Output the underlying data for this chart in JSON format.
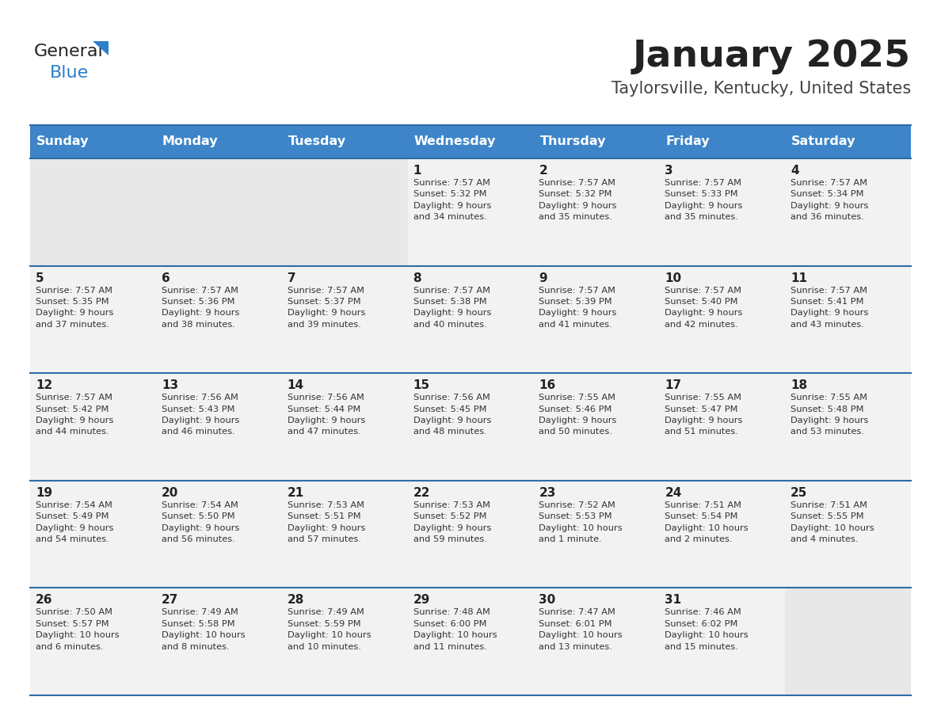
{
  "title": "January 2025",
  "subtitle": "Taylorsville, Kentucky, United States",
  "header_bg": "#3d85c8",
  "header_text_color": "#ffffff",
  "days_of_week": [
    "Sunday",
    "Monday",
    "Tuesday",
    "Wednesday",
    "Thursday",
    "Friday",
    "Saturday"
  ],
  "weeks": [
    [
      {
        "day": "",
        "info": ""
      },
      {
        "day": "",
        "info": ""
      },
      {
        "day": "",
        "info": ""
      },
      {
        "day": "1",
        "info": "Sunrise: 7:57 AM\nSunset: 5:32 PM\nDaylight: 9 hours\nand 34 minutes."
      },
      {
        "day": "2",
        "info": "Sunrise: 7:57 AM\nSunset: 5:32 PM\nDaylight: 9 hours\nand 35 minutes."
      },
      {
        "day": "3",
        "info": "Sunrise: 7:57 AM\nSunset: 5:33 PM\nDaylight: 9 hours\nand 35 minutes."
      },
      {
        "day": "4",
        "info": "Sunrise: 7:57 AM\nSunset: 5:34 PM\nDaylight: 9 hours\nand 36 minutes."
      }
    ],
    [
      {
        "day": "5",
        "info": "Sunrise: 7:57 AM\nSunset: 5:35 PM\nDaylight: 9 hours\nand 37 minutes."
      },
      {
        "day": "6",
        "info": "Sunrise: 7:57 AM\nSunset: 5:36 PM\nDaylight: 9 hours\nand 38 minutes."
      },
      {
        "day": "7",
        "info": "Sunrise: 7:57 AM\nSunset: 5:37 PM\nDaylight: 9 hours\nand 39 minutes."
      },
      {
        "day": "8",
        "info": "Sunrise: 7:57 AM\nSunset: 5:38 PM\nDaylight: 9 hours\nand 40 minutes."
      },
      {
        "day": "9",
        "info": "Sunrise: 7:57 AM\nSunset: 5:39 PM\nDaylight: 9 hours\nand 41 minutes."
      },
      {
        "day": "10",
        "info": "Sunrise: 7:57 AM\nSunset: 5:40 PM\nDaylight: 9 hours\nand 42 minutes."
      },
      {
        "day": "11",
        "info": "Sunrise: 7:57 AM\nSunset: 5:41 PM\nDaylight: 9 hours\nand 43 minutes."
      }
    ],
    [
      {
        "day": "12",
        "info": "Sunrise: 7:57 AM\nSunset: 5:42 PM\nDaylight: 9 hours\nand 44 minutes."
      },
      {
        "day": "13",
        "info": "Sunrise: 7:56 AM\nSunset: 5:43 PM\nDaylight: 9 hours\nand 46 minutes."
      },
      {
        "day": "14",
        "info": "Sunrise: 7:56 AM\nSunset: 5:44 PM\nDaylight: 9 hours\nand 47 minutes."
      },
      {
        "day": "15",
        "info": "Sunrise: 7:56 AM\nSunset: 5:45 PM\nDaylight: 9 hours\nand 48 minutes."
      },
      {
        "day": "16",
        "info": "Sunrise: 7:55 AM\nSunset: 5:46 PM\nDaylight: 9 hours\nand 50 minutes."
      },
      {
        "day": "17",
        "info": "Sunrise: 7:55 AM\nSunset: 5:47 PM\nDaylight: 9 hours\nand 51 minutes."
      },
      {
        "day": "18",
        "info": "Sunrise: 7:55 AM\nSunset: 5:48 PM\nDaylight: 9 hours\nand 53 minutes."
      }
    ],
    [
      {
        "day": "19",
        "info": "Sunrise: 7:54 AM\nSunset: 5:49 PM\nDaylight: 9 hours\nand 54 minutes."
      },
      {
        "day": "20",
        "info": "Sunrise: 7:54 AM\nSunset: 5:50 PM\nDaylight: 9 hours\nand 56 minutes."
      },
      {
        "day": "21",
        "info": "Sunrise: 7:53 AM\nSunset: 5:51 PM\nDaylight: 9 hours\nand 57 minutes."
      },
      {
        "day": "22",
        "info": "Sunrise: 7:53 AM\nSunset: 5:52 PM\nDaylight: 9 hours\nand 59 minutes."
      },
      {
        "day": "23",
        "info": "Sunrise: 7:52 AM\nSunset: 5:53 PM\nDaylight: 10 hours\nand 1 minute."
      },
      {
        "day": "24",
        "info": "Sunrise: 7:51 AM\nSunset: 5:54 PM\nDaylight: 10 hours\nand 2 minutes."
      },
      {
        "day": "25",
        "info": "Sunrise: 7:51 AM\nSunset: 5:55 PM\nDaylight: 10 hours\nand 4 minutes."
      }
    ],
    [
      {
        "day": "26",
        "info": "Sunrise: 7:50 AM\nSunset: 5:57 PM\nDaylight: 10 hours\nand 6 minutes."
      },
      {
        "day": "27",
        "info": "Sunrise: 7:49 AM\nSunset: 5:58 PM\nDaylight: 10 hours\nand 8 minutes."
      },
      {
        "day": "28",
        "info": "Sunrise: 7:49 AM\nSunset: 5:59 PM\nDaylight: 10 hours\nand 10 minutes."
      },
      {
        "day": "29",
        "info": "Sunrise: 7:48 AM\nSunset: 6:00 PM\nDaylight: 10 hours\nand 11 minutes."
      },
      {
        "day": "30",
        "info": "Sunrise: 7:47 AM\nSunset: 6:01 PM\nDaylight: 10 hours\nand 13 minutes."
      },
      {
        "day": "31",
        "info": "Sunrise: 7:46 AM\nSunset: 6:02 PM\nDaylight: 10 hours\nand 15 minutes."
      },
      {
        "day": "",
        "info": ""
      }
    ]
  ],
  "cell_bg_color": "#f2f2f2",
  "empty_cell_bg": "#e8e8e8",
  "row_separator_color": "#2e6da4",
  "day_number_color": "#222222",
  "info_text_color": "#333333",
  "logo_general_color": "#222222",
  "logo_blue_color": "#2a7fc9",
  "title_color": "#222222",
  "subtitle_color": "#444444",
  "fig_width": 11.88,
  "fig_height": 9.18,
  "dpi": 100
}
